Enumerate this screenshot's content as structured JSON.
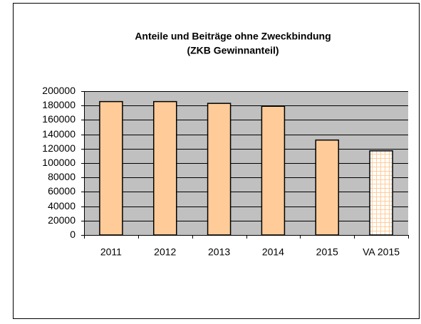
{
  "chart_data": {
    "type": "bar",
    "title": "Anteile und Beiträge ohne Zweckbindung",
    "subtitle": "(ZKB Gewinnanteil)",
    "categories": [
      "2011",
      "2012",
      "2013",
      "2014",
      "2015",
      "VA 2015"
    ],
    "values": [
      185500,
      185500,
      183000,
      179000,
      132000,
      117000
    ],
    "color": "#ffcc99",
    "hatched": [
      false,
      false,
      false,
      false,
      false,
      true
    ],
    "plot_background": "#c0c0c0",
    "ylim": [
      0,
      200000
    ],
    "yticks": [
      0,
      20000,
      40000,
      60000,
      80000,
      100000,
      120000,
      140000,
      160000,
      180000,
      200000
    ],
    "grid": true
  }
}
